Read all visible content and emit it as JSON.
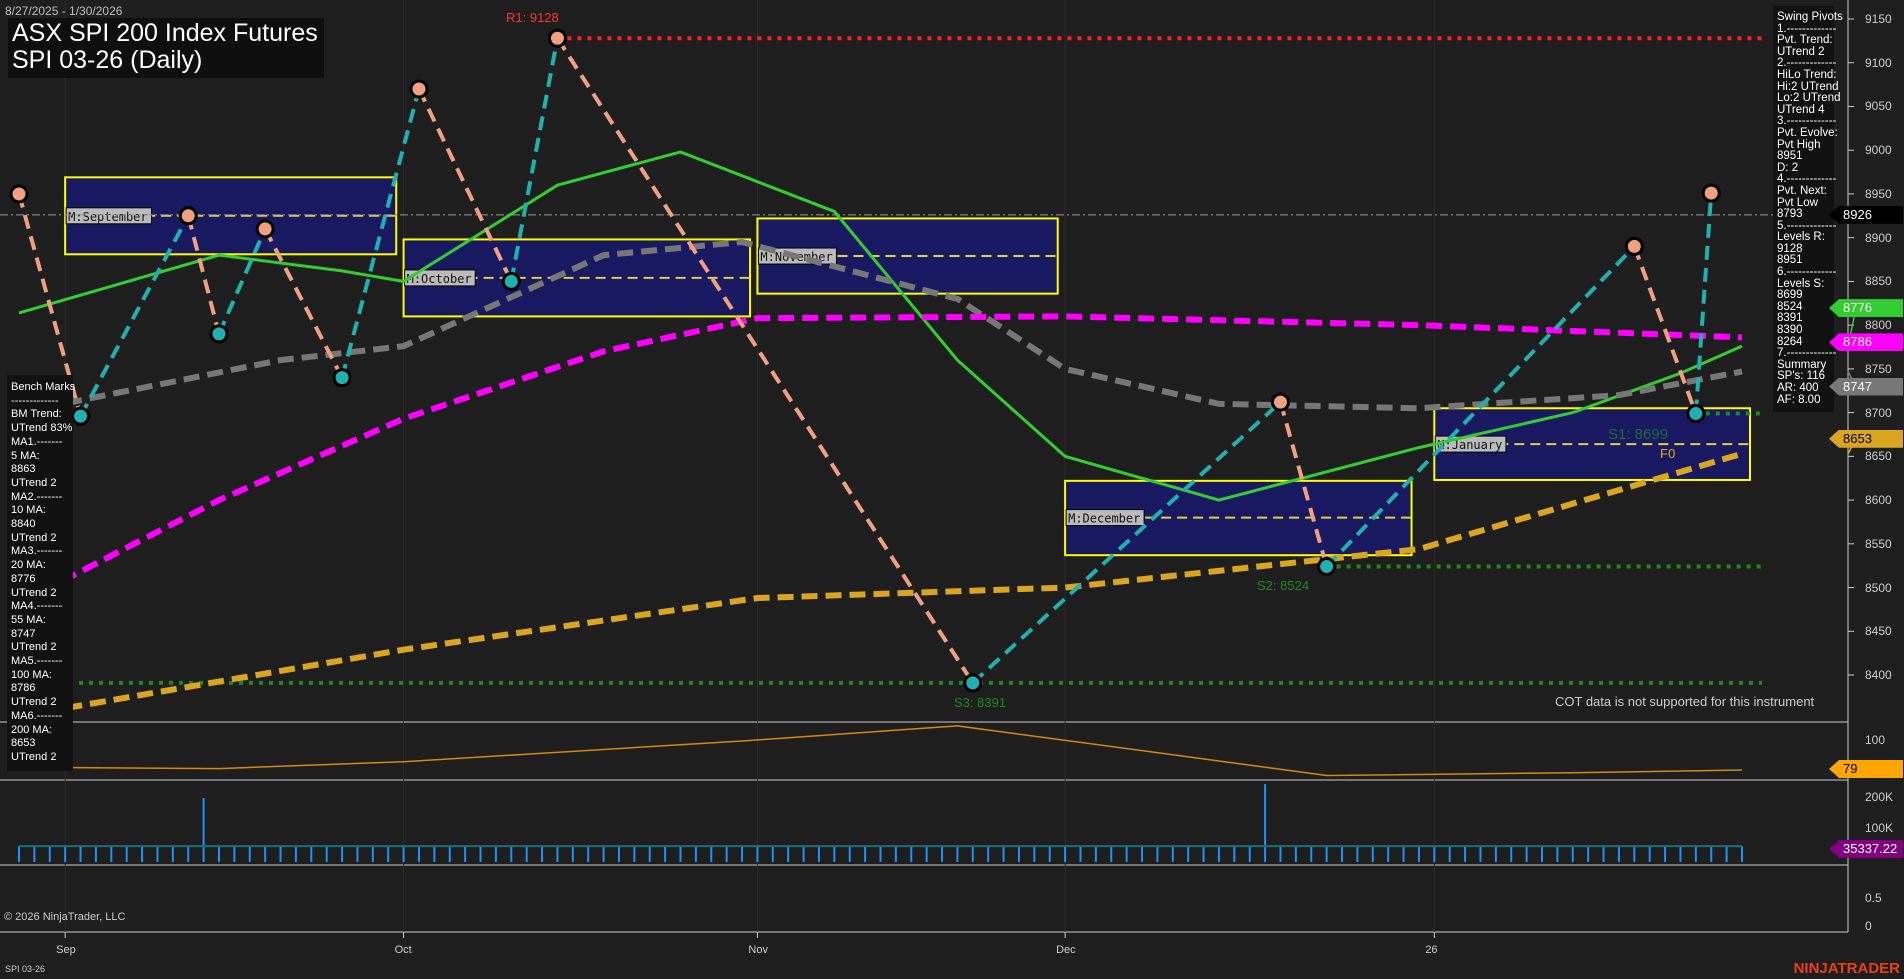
{
  "header": {
    "date_range": "8/27/2025 - 1/30/2026",
    "title_line1": "ASX SPI 200 Index Futures",
    "title_line2": "SPI 03-26 (Daily)"
  },
  "swing_pivots": {
    "lines": [
      "Swing Pivots",
      "1.-------------",
      "Pvt. Trend:",
      "UTrend 2",
      "2.-------------",
      "HiLo Trend:",
      "Hi:2 UTrend",
      "Lo:2 UTrend",
      "UTrend 4",
      "3.-------------",
      "Pvt. Evolve:",
      "Pvt High",
      "8951",
      "D: 2",
      "4.-------------",
      "Pvt. Next:",
      "Pvt Low",
      "8793",
      "5.-------------",
      "Levels R:",
      "9128",
      "8951",
      "6.-------------",
      "Levels S:",
      "8699",
      "8524",
      "8391",
      "8390",
      "8264",
      "7.-------------",
      "Summary",
      "SP's: 116",
      "AR: 400",
      "AF: 8.00"
    ]
  },
  "bench_marks": {
    "lines": [
      "Bench Marks",
      "-------------",
      "BM Trend:",
      "UTrend 83%",
      "MA1.-------",
      "5 MA:",
      "8863",
      "UTrend 2",
      "MA2.-------",
      "10 MA:",
      "8840",
      "UTrend 2",
      "MA3.-------",
      "20 MA:",
      "8776",
      "UTrend 2",
      "MA4.-------",
      "55 MA:",
      "8747",
      "UTrend 2",
      "MA5.-------",
      "100 MA:",
      "8786",
      "UTrend 2",
      "MA6.-------",
      "200 MA:",
      "8653",
      "UTrend 2"
    ]
  },
  "price_labels": [
    {
      "value": "8926",
      "bg": "#000000",
      "fg": "#ffffff"
    },
    {
      "value": "8786",
      "bg": "#ff00ff",
      "fg": "#ffffff"
    },
    {
      "value": "8776",
      "bg": "#33cc33",
      "fg": "#ffffff"
    },
    {
      "value": "8747",
      "bg": "#777777",
      "fg": "#ffffff"
    },
    {
      "value": "8653",
      "bg": "#daa520",
      "fg": "#000000"
    }
  ],
  "level_labels": {
    "r1": "R1: 9128",
    "s1": "S1: 8699",
    "s2": "S2: 8524",
    "s3": "S3: 8391",
    "f0": "F0"
  },
  "cot_message": "COT data is not supported for this instrument",
  "oscillator": {
    "axis": [
      "100"
    ],
    "label": "79",
    "color": "#ffa500"
  },
  "volume": {
    "axis": [
      "200K",
      "100K"
    ],
    "label": "35337.22"
  },
  "bottom_panel": {
    "axis": [
      "0.5",
      "0"
    ]
  },
  "footer": {
    "copyright": "© 2026 NinjaTrader, LLC",
    "instrument": "SPI 03-26",
    "brand": "NINJATRADER"
  },
  "chart_data": {
    "type": "line",
    "xlabel": "",
    "ylabel": "",
    "x_ticks": [
      "Sep",
      "Oct",
      "Nov",
      "Dec",
      "26"
    ],
    "ylim": [
      8340,
      9170
    ],
    "y_ticks": [
      8400,
      8450,
      8500,
      8550,
      8600,
      8650,
      8700,
      8750,
      8800,
      8850,
      8900,
      8950,
      9000,
      9050,
      9100,
      9150
    ],
    "grid": false,
    "swing_zigzag": [
      [
        "2025-08-27",
        8950
      ],
      [
        "2025-09-02",
        8696
      ],
      [
        "2025-09-11",
        8925
      ],
      [
        "2025-09-15",
        8790
      ],
      [
        "2025-09-18",
        8910
      ],
      [
        "2025-09-25",
        8740
      ],
      [
        "2025-10-02",
        9070
      ],
      [
        "2025-10-10",
        8850
      ],
      [
        "2025-10-15",
        9128
      ],
      [
        "2025-11-21",
        8391
      ],
      [
        "2025-12-19",
        8712
      ],
      [
        "2025-12-24",
        8524
      ],
      [
        "2026-01-21",
        8890
      ],
      [
        "2026-01-27",
        8699
      ],
      [
        "2026-01-28",
        8951
      ]
    ],
    "last_price": 8926,
    "moving_averages": [
      {
        "name": "20 MA",
        "color": "#33cc33",
        "dash": false,
        "points": [
          [
            "2025-08-27",
            8814
          ],
          [
            "2025-09-15",
            8880
          ],
          [
            "2025-09-25",
            8862
          ],
          [
            "2025-10-01",
            8850
          ],
          [
            "2025-10-15",
            8960
          ],
          [
            "2025-10-27",
            8998
          ],
          [
            "2025-11-10",
            8930
          ],
          [
            "2025-11-20",
            8760
          ],
          [
            "2025-12-01",
            8650
          ],
          [
            "2025-12-15",
            8600
          ],
          [
            "2026-01-01",
            8660
          ],
          [
            "2026-01-15",
            8700
          ],
          [
            "2026-01-26",
            8745
          ],
          [
            "2026-01-30",
            8776
          ]
        ]
      },
      {
        "name": "55 MA",
        "color": "#777777",
        "dash": true,
        "points": [
          [
            "2025-08-27",
            8700
          ],
          [
            "2025-09-20",
            8760
          ],
          [
            "2025-10-01",
            8776
          ],
          [
            "2025-10-20",
            8880
          ],
          [
            "2025-10-31",
            8895
          ],
          [
            "2025-11-20",
            8830
          ],
          [
            "2025-12-01",
            8750
          ],
          [
            "2025-12-15",
            8710
          ],
          [
            "2026-01-01",
            8705
          ],
          [
            "2026-01-20",
            8720
          ],
          [
            "2026-01-30",
            8747
          ]
        ]
      },
      {
        "name": "100 MA",
        "color": "#ff00ff",
        "dash": true,
        "points": [
          [
            "2025-08-27",
            8482
          ],
          [
            "2025-09-15",
            8600
          ],
          [
            "2025-10-01",
            8693
          ],
          [
            "2025-10-20",
            8770
          ],
          [
            "2025-11-03",
            8808
          ],
          [
            "2025-12-01",
            8810
          ],
          [
            "2026-01-01",
            8800
          ],
          [
            "2026-01-30",
            8786
          ]
        ]
      },
      {
        "name": "200 MA",
        "color": "#daa520",
        "dash": true,
        "points": [
          [
            "2025-08-27",
            8353
          ],
          [
            "2025-10-01",
            8429
          ],
          [
            "2025-11-03",
            8488
          ],
          [
            "2025-12-01",
            8500
          ],
          [
            "2026-01-01",
            8544
          ],
          [
            "2026-01-30",
            8653
          ]
        ]
      }
    ],
    "levels": [
      {
        "name": "R1",
        "value": 9128,
        "from": "2025-10-15",
        "color": "#ff2020"
      },
      {
        "name": "S1",
        "value": 8699,
        "from": "2026-01-27",
        "color": "#1a8a1a"
      },
      {
        "name": "S2",
        "value": 8524,
        "from": "2025-12-24",
        "color": "#1a8a1a"
      },
      {
        "name": "S3",
        "value": 8391,
        "from": "2025-08-27",
        "color": "#1a8a1a"
      }
    ],
    "monthly_boxes": [
      {
        "label": "M:September",
        "from": "2025-09-01",
        "to": "2025-09-30",
        "high": 8969,
        "low": 8881,
        "mid": 8925
      },
      {
        "label": "M:October",
        "from": "2025-10-01",
        "to": "2025-10-31",
        "high": 8898,
        "low": 8810,
        "mid": 8854
      },
      {
        "label": "M:November",
        "from": "2025-11-03",
        "to": "2025-11-28",
        "high": 8922,
        "low": 8836,
        "mid": 8879
      },
      {
        "label": "M:December",
        "from": "2025-12-01",
        "to": "2025-12-31",
        "high": 8622,
        "low": 8537,
        "mid": 8580
      },
      {
        "label": "M:January",
        "from": "2026-01-02",
        "to": "2026-01-30",
        "high": 8705,
        "low": 8623,
        "mid": 8664
      }
    ],
    "oscillator_series": [
      [
        "2025-08-27",
        81
      ],
      [
        "2025-09-15",
        80
      ],
      [
        "2025-10-01",
        85
      ],
      [
        "2025-11-01",
        100
      ],
      [
        "2025-11-20",
        111
      ],
      [
        "2025-12-10",
        90
      ],
      [
        "2025-12-24",
        75
      ],
      [
        "2026-01-15",
        77
      ],
      [
        "2026-01-30",
        79
      ]
    ],
    "volume_typical": 35000,
    "volume_spikes": [
      [
        "2025-09-12",
        190000
      ],
      [
        "2025-12-18",
        235000
      ]
    ]
  }
}
